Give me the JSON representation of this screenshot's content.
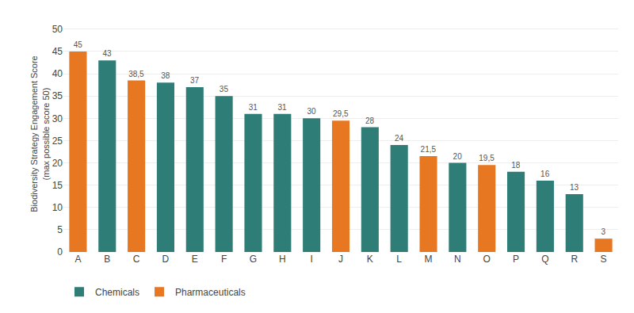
{
  "chart_data": {
    "type": "bar",
    "categories": [
      "A",
      "B",
      "C",
      "D",
      "E",
      "F",
      "G",
      "H",
      "I",
      "J",
      "K",
      "L",
      "M",
      "N",
      "O",
      "P",
      "Q",
      "R",
      "S"
    ],
    "series": [
      {
        "name": "Chemicals",
        "color": "#2E7D77",
        "values": [
          null,
          43,
          null,
          38,
          37,
          35,
          31,
          31,
          30,
          null,
          28,
          24,
          null,
          20,
          null,
          18,
          16,
          13,
          null
        ],
        "value_labels": [
          null,
          "43",
          null,
          "38",
          "37",
          "35",
          "31",
          "31",
          "30",
          null,
          "28",
          "24",
          null,
          "20",
          null,
          "18",
          "16",
          "13",
          null
        ]
      },
      {
        "name": "Pharmaceuticals",
        "color": "#E87722",
        "values": [
          45,
          null,
          38.5,
          null,
          null,
          null,
          null,
          null,
          null,
          29.5,
          null,
          null,
          21.5,
          null,
          19.5,
          null,
          null,
          null,
          3
        ],
        "value_labels": [
          "45",
          null,
          "38,5",
          null,
          null,
          null,
          null,
          null,
          null,
          "29,5",
          null,
          null,
          "21,5",
          null,
          "19,5",
          null,
          null,
          null,
          "3"
        ]
      }
    ],
    "ylabel": "Biodiversity Strategy Engagement Score\n(max possible score 50)",
    "ylim": [
      0,
      53
    ],
    "yticks": [
      0,
      5,
      10,
      15,
      20,
      25,
      30,
      35,
      40,
      45,
      50
    ],
    "grid": true,
    "data_labels": true,
    "legend": "bottom"
  }
}
